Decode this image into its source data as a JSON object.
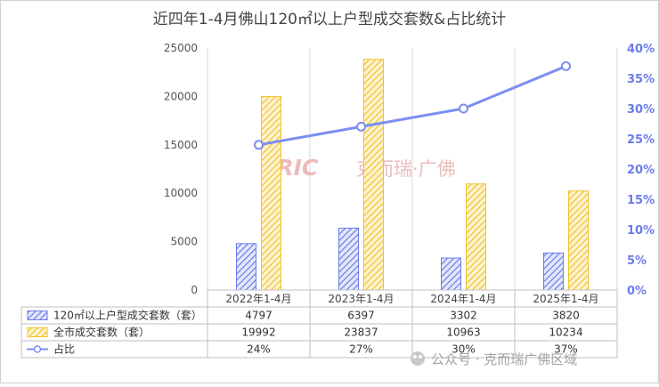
{
  "chart_data": {
    "type": "bar",
    "title": "近四年1-4月佛山120㎡以上户型成交套数&占比统计",
    "categories": [
      "2022年1-4月",
      "2023年1-4月",
      "2024年1-4月",
      "2025年1-4月"
    ],
    "series": [
      {
        "name": "120㎡以上户型成交套数（套）",
        "type": "bar",
        "axis": "left",
        "values": [
          4797,
          6397,
          3302,
          3820
        ],
        "color": "#6b7ce8",
        "table_values": [
          "4797",
          "6397",
          "3302",
          "3820"
        ]
      },
      {
        "name": "全市成交套数（套）",
        "type": "bar",
        "axis": "left",
        "values": [
          19992,
          23837,
          10963,
          10234
        ],
        "color": "#f2c12e",
        "table_values": [
          "19992",
          "23837",
          "10963",
          "10234"
        ]
      },
      {
        "name": "占比",
        "type": "line",
        "axis": "right",
        "values": [
          24,
          27,
          30,
          37
        ],
        "color": "#7b8ef2",
        "table_values": [
          "24%",
          "27%",
          "30%",
          "37%"
        ]
      }
    ],
    "left_axis": {
      "ylim": [
        0,
        25000
      ],
      "ticks": [
        0,
        5000,
        10000,
        15000,
        20000,
        25000
      ],
      "tick_labels": [
        "0",
        "5000",
        "10000",
        "15000",
        "20000",
        "25000"
      ]
    },
    "right_axis": {
      "ylim": [
        0,
        40
      ],
      "ticks": [
        0,
        5,
        10,
        15,
        20,
        25,
        30,
        35,
        40
      ],
      "tick_labels": [
        "0%",
        "5%",
        "10%",
        "15%",
        "20%",
        "25%",
        "30%",
        "35%",
        "40%"
      ],
      "color": "#6b7ce8"
    },
    "grid": "vertical",
    "legend": "data-table"
  },
  "watermark": {
    "logo": "CRIC",
    "text": "克而瑞·广佛",
    "footer": "公众号 · 克而瑞广佛区域"
  }
}
